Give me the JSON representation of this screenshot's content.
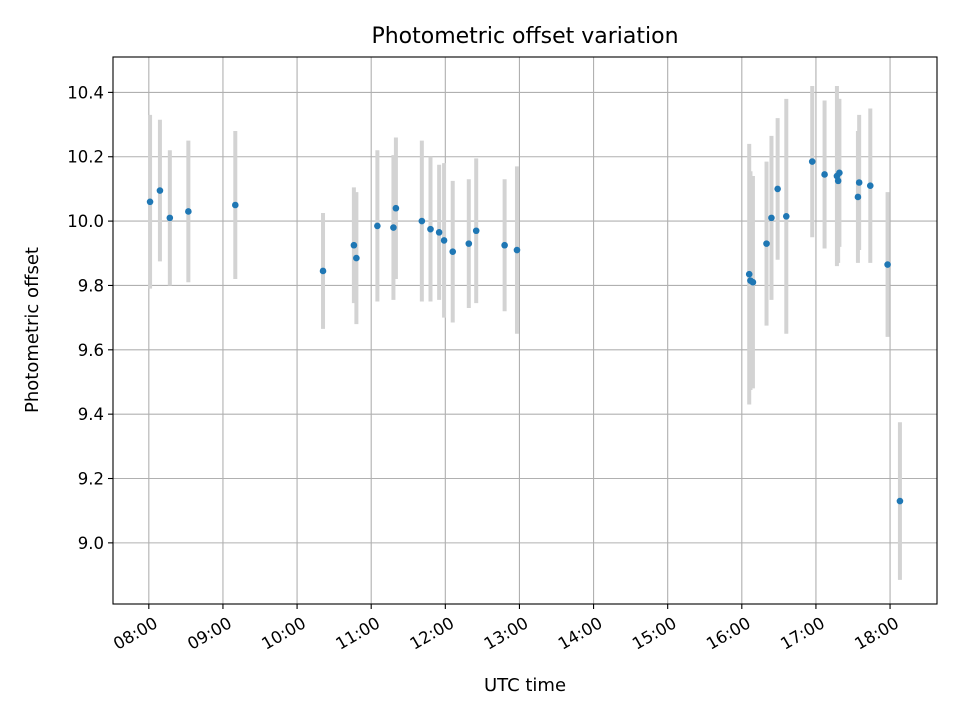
{
  "chart_data": {
    "type": "scatter",
    "title": "Photometric offset variation",
    "xlabel": "UTC time",
    "ylabel": "Photometric offset",
    "x_unit": "hours UTC",
    "xlim": [
      "07:31",
      "18:38"
    ],
    "ylim": [
      8.81,
      10.51
    ],
    "xticks": [
      "08:00",
      "09:00",
      "10:00",
      "11:00",
      "12:00",
      "13:00",
      "14:00",
      "15:00",
      "16:00",
      "17:00",
      "18:00"
    ],
    "yticks": [
      "9.0",
      "9.2",
      "9.4",
      "9.6",
      "9.8",
      "10.0",
      "10.2",
      "10.4"
    ],
    "grid": true,
    "marker_color": "#1f77b4",
    "errorbar_color": "#d3d3d3",
    "points": [
      {
        "x": "08:01",
        "y": 10.06,
        "err": 0.27
      },
      {
        "x": "08:09",
        "y": 10.095,
        "err": 0.22
      },
      {
        "x": "08:17",
        "y": 10.01,
        "err": 0.21
      },
      {
        "x": "08:32",
        "y": 10.03,
        "err": 0.22
      },
      {
        "x": "09:10",
        "y": 10.05,
        "err": 0.23
      },
      {
        "x": "10:21",
        "y": 9.845,
        "err": 0.18
      },
      {
        "x": "10:46",
        "y": 9.925,
        "err": 0.18
      },
      {
        "x": "10:48",
        "y": 9.885,
        "err": 0.205
      },
      {
        "x": "11:05",
        "y": 9.985,
        "err": 0.235
      },
      {
        "x": "11:18",
        "y": 9.98,
        "err": 0.225
      },
      {
        "x": "11:20",
        "y": 10.04,
        "err": 0.22
      },
      {
        "x": "11:41",
        "y": 10.0,
        "err": 0.25
      },
      {
        "x": "11:48",
        "y": 9.975,
        "err": 0.225
      },
      {
        "x": "11:55",
        "y": 9.965,
        "err": 0.21
      },
      {
        "x": "11:59",
        "y": 9.94,
        "err": 0.24
      },
      {
        "x": "12:06",
        "y": 9.905,
        "err": 0.22
      },
      {
        "x": "12:19",
        "y": 9.93,
        "err": 0.2
      },
      {
        "x": "12:25",
        "y": 9.97,
        "err": 0.225
      },
      {
        "x": "12:48",
        "y": 9.925,
        "err": 0.205
      },
      {
        "x": "12:58",
        "y": 9.91,
        "err": 0.26
      },
      {
        "x": "16:06",
        "y": 9.835,
        "err": 0.405
      },
      {
        "x": "16:07",
        "y": 9.815,
        "err": 0.34
      },
      {
        "x": "16:09",
        "y": 9.81,
        "err": 0.33
      },
      {
        "x": "16:20",
        "y": 9.93,
        "err": 0.255
      },
      {
        "x": "16:24",
        "y": 10.01,
        "err": 0.255
      },
      {
        "x": "16:29",
        "y": 10.1,
        "err": 0.22
      },
      {
        "x": "16:36",
        "y": 10.015,
        "err": 0.365
      },
      {
        "x": "16:57",
        "y": 10.185,
        "err": 0.235
      },
      {
        "x": "17:07",
        "y": 10.145,
        "err": 0.23
      },
      {
        "x": "17:17",
        "y": 10.14,
        "err": 0.28
      },
      {
        "x": "17:18",
        "y": 10.125,
        "err": 0.255
      },
      {
        "x": "17:19",
        "y": 10.15,
        "err": 0.23
      },
      {
        "x": "17:34",
        "y": 10.075,
        "err": 0.205
      },
      {
        "x": "17:35",
        "y": 10.12,
        "err": 0.21
      },
      {
        "x": "17:44",
        "y": 10.11,
        "err": 0.24
      },
      {
        "x": "17:58",
        "y": 9.865,
        "err": 0.225
      },
      {
        "x": "18:08",
        "y": 9.13,
        "err": 0.245
      }
    ]
  }
}
